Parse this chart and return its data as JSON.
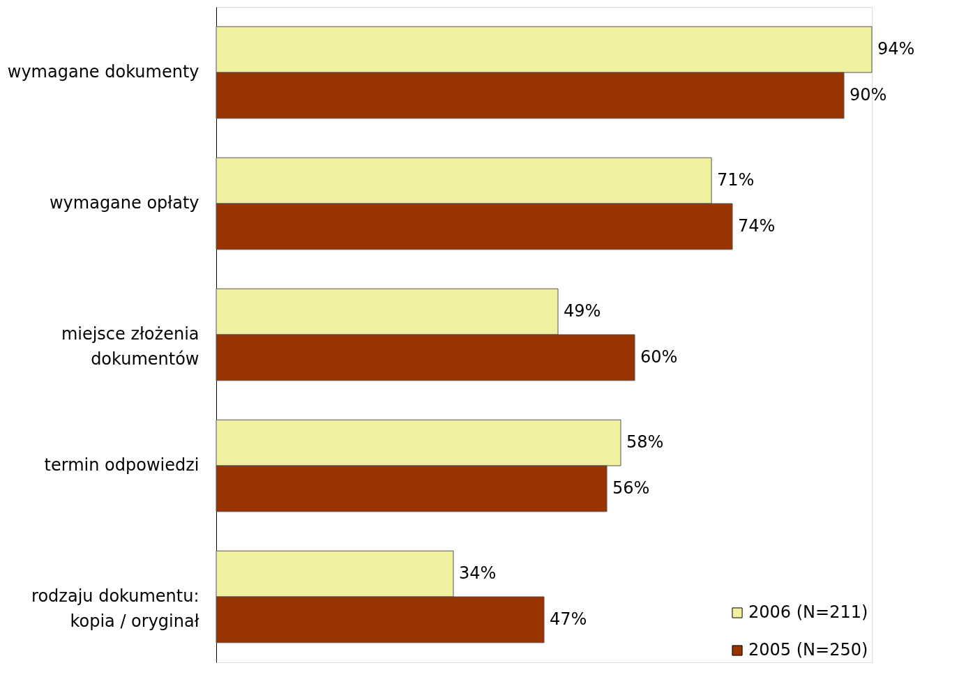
{
  "chart_data": {
    "type": "bar",
    "orientation": "horizontal",
    "categories": [
      "wymagane dokumenty",
      "wymagane opłaty",
      "miejsce złożenia\ndokumentów",
      "termin odpowiedzi",
      "rodzaju dokumentu:\nkopia / oryginał"
    ],
    "series": [
      {
        "name": "2006 (N=211)",
        "color": "#f0f0a0",
        "values": [
          94,
          71,
          49,
          58,
          34
        ],
        "value_labels": [
          "94%",
          "71%",
          "49%",
          "58%",
          "34%"
        ]
      },
      {
        "name": "2005 (N=250)",
        "color": "#993300",
        "values": [
          90,
          74,
          60,
          56,
          47
        ],
        "value_labels": [
          "90%",
          "74%",
          "60%",
          "56%",
          "47%"
        ]
      }
    ],
    "legend": "bottom right",
    "grid": false
  }
}
